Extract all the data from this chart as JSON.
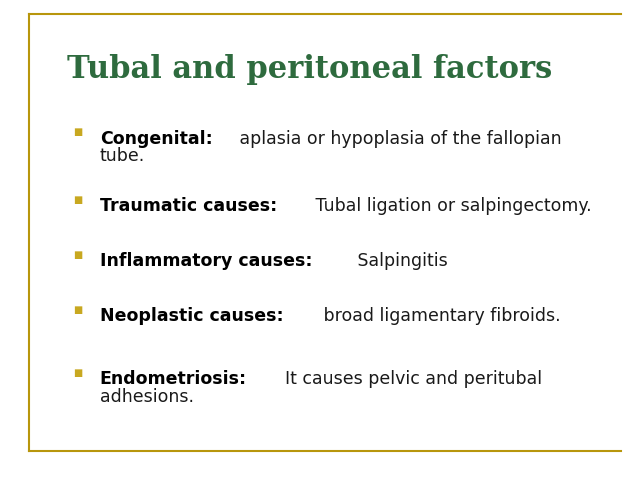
{
  "title": "Tubal and peritoneal factors",
  "title_color": "#2E6B3E",
  "title_fontsize": 22,
  "background_color": "#FFFFFF",
  "border_color": "#B8960C",
  "bullet_color": "#C8A820",
  "text_color": "#1a1a1a",
  "bold_color": "#000000",
  "bullet_items": [
    {
      "bold": "Congenital:",
      "normal": " aplasia or hypoplasia of the fallopian\ntube."
    },
    {
      "bold": "Traumatic causes:",
      "normal": " Tubal ligation or salpingectomy."
    },
    {
      "bold": "Inflammatory causes:",
      "normal": " Salpingitis"
    },
    {
      "bold": "Neoplastic causes:",
      "normal": " broad ligamentary fibroids."
    },
    {
      "bold": "Endometriosis:",
      "normal": "  It causes pelvic and peritubal\nadhesions."
    }
  ],
  "fontsize": 12.5,
  "figsize": [
    6.4,
    4.8
  ],
  "dpi": 100
}
